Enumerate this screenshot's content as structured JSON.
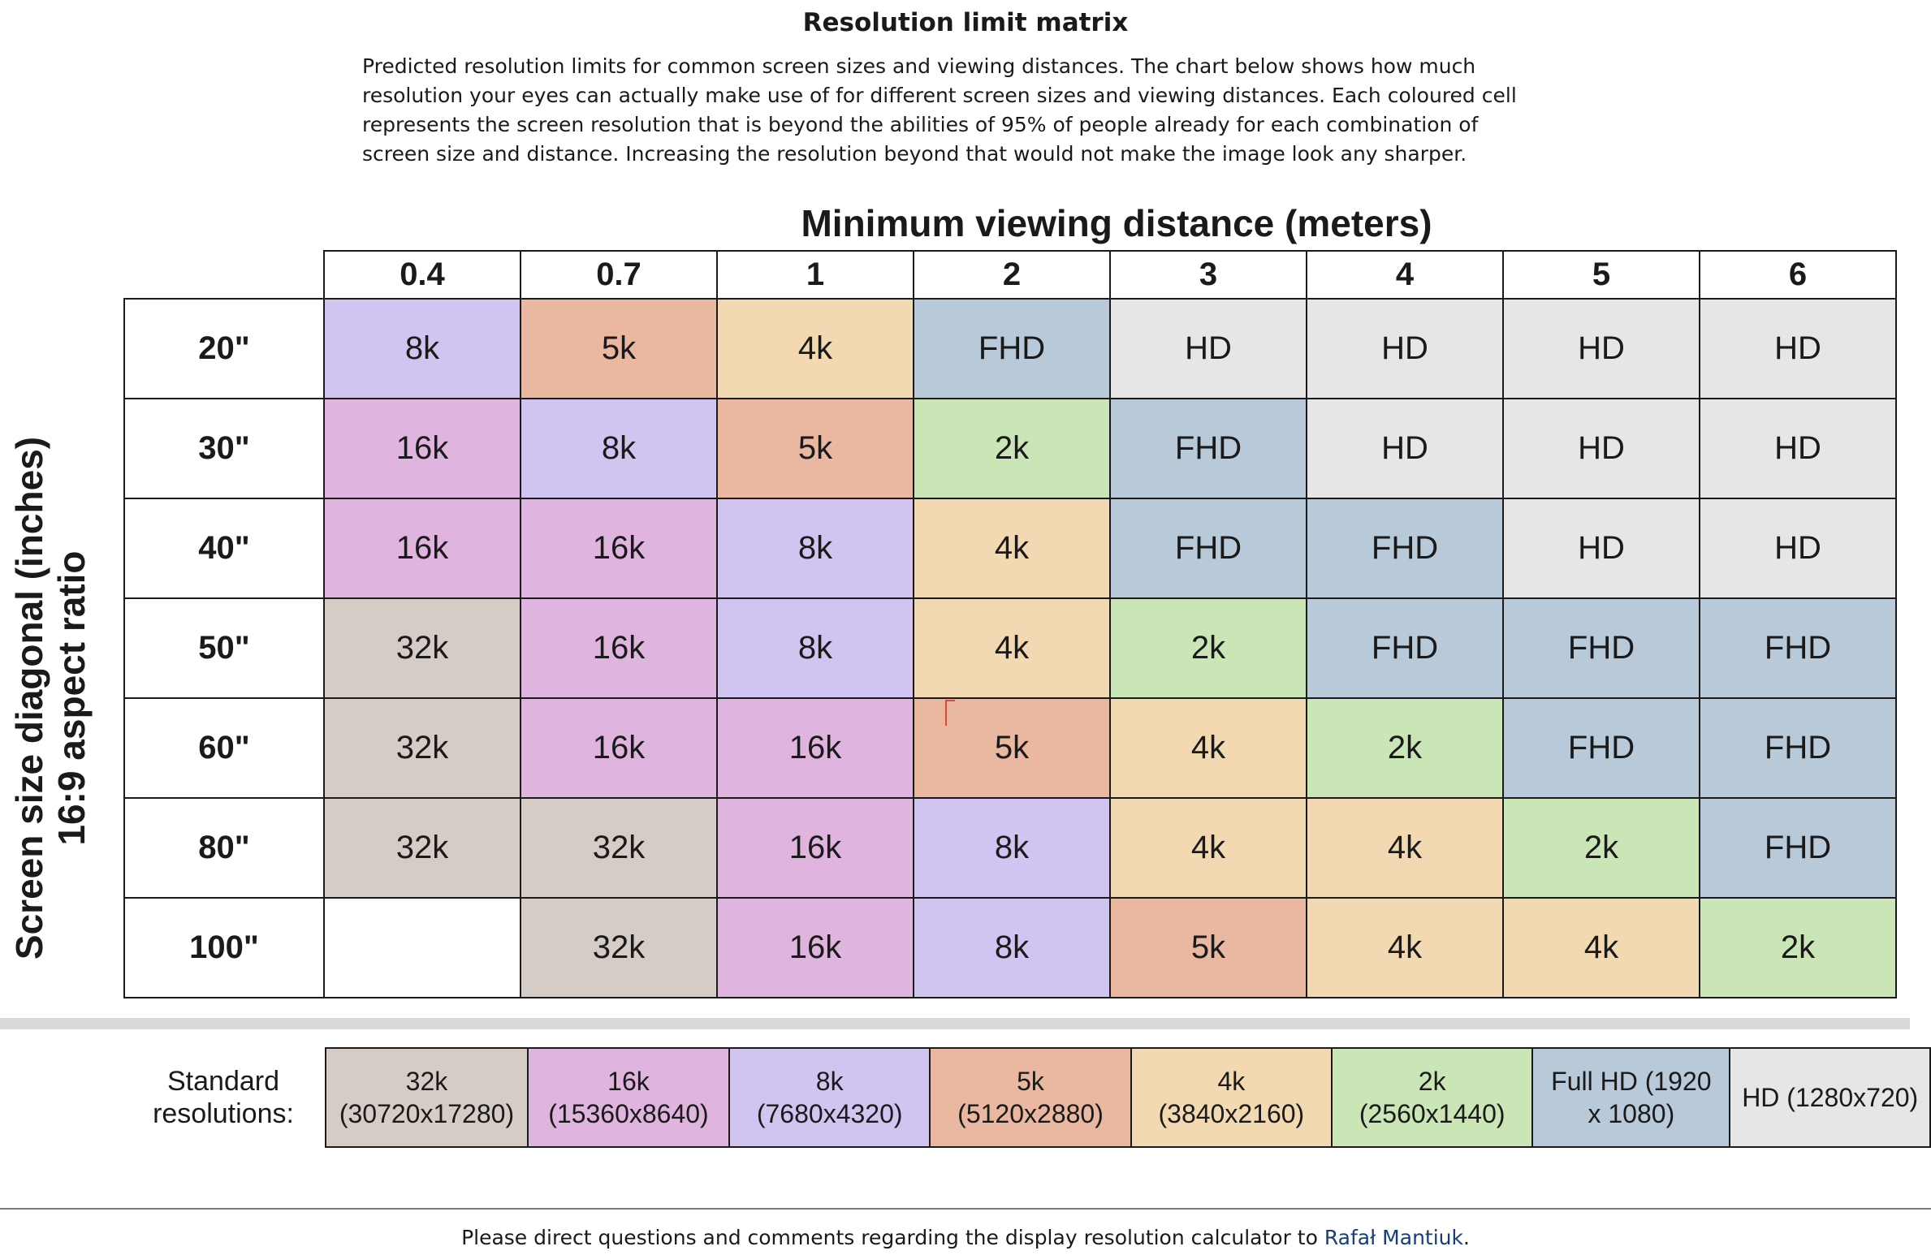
{
  "title": "Resolution limit matrix",
  "description": "Predicted resolution limits for common screen sizes and viewing distances. The chart below shows how much resolution your eyes can actually make use of for different screen sizes and viewing distances. Each coloured cell represents the screen resolution that is beyond the abilities of 95% of people already for each combination of screen size and distance. Increasing the resolution beyond that would not make the image look any sharper.",
  "x_axis_label": "Minimum viewing distance (meters)",
  "y_axis_label": [
    "Screen size diagonal (inches)",
    "16:9 aspect ratio"
  ],
  "distances": [
    "0.4",
    "0.7",
    "1",
    "2",
    "3",
    "4",
    "5",
    "6"
  ],
  "screen_sizes": [
    "20\"",
    "30\"",
    "40\"",
    "50\"",
    "60\"",
    "80\"",
    "100\""
  ],
  "colors": {
    "32k": "#d6ccc6",
    "16k": "#dfb5df",
    "8k": "#d1c4f0",
    "5k": "#eab8a0",
    "4k": "#f2d9b1",
    "2k": "#cbe6b6",
    "FHD": "#b8c9da",
    "HD": "#e6e6e6",
    "": "#ffffff"
  },
  "matrix": [
    [
      "8k",
      "5k",
      "4k",
      "FHD",
      "HD",
      "HD",
      "HD",
      "HD"
    ],
    [
      "16k",
      "8k",
      "5k",
      "2k",
      "FHD",
      "HD",
      "HD",
      "HD"
    ],
    [
      "16k",
      "16k",
      "8k",
      "4k",
      "FHD",
      "FHD",
      "HD",
      "HD"
    ],
    [
      "32k",
      "16k",
      "8k",
      "4k",
      "2k",
      "FHD",
      "FHD",
      "FHD"
    ],
    [
      "32k",
      "16k",
      "16k",
      "5k",
      "4k",
      "2k",
      "FHD",
      "FHD"
    ],
    [
      "32k",
      "32k",
      "16k",
      "8k",
      "4k",
      "4k",
      "2k",
      "FHD"
    ],
    [
      "",
      "32k",
      "16k",
      "8k",
      "5k",
      "4k",
      "4k",
      "2k"
    ]
  ],
  "legend": {
    "label": "Standard resolutions:",
    "items": [
      {
        "key": "32k",
        "text": "32k\n(30720x17280)"
      },
      {
        "key": "16k",
        "text": "16k\n(15360x8640)"
      },
      {
        "key": "8k",
        "text": "8k\n(7680x4320)"
      },
      {
        "key": "5k",
        "text": "5k\n(5120x2880)"
      },
      {
        "key": "4k",
        "text": "4k\n(3840x2160)"
      },
      {
        "key": "2k",
        "text": "2k\n(2560x1440)"
      },
      {
        "key": "FHD",
        "text": "Full HD (1920\nx 1080)"
      },
      {
        "key": "HD",
        "text": "HD (1280x720)"
      }
    ]
  },
  "footer": {
    "text": "Please direct questions and comments regarding the display resolution calculator to ",
    "link": "Rafał Mantiuk",
    "end": "."
  }
}
